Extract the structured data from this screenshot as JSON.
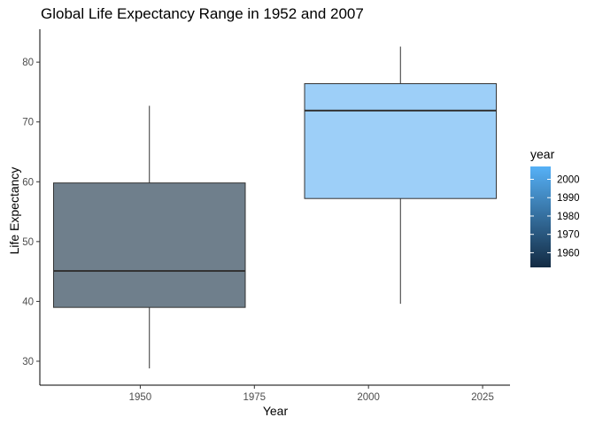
{
  "chart_data": {
    "type": "boxplot",
    "title": "Global Life Expectancy Range in 1952 and 2007",
    "xlabel": "Year",
    "ylabel": "Life Expectancy",
    "xlim": [
      1928,
      2031
    ],
    "ylim": [
      26,
      85.5
    ],
    "x_ticks": [
      1950,
      1975,
      2000,
      2025
    ],
    "y_ticks": [
      30,
      40,
      50,
      60,
      70,
      80
    ],
    "grid": false,
    "legend": {
      "title": "year",
      "type": "colorbar",
      "position": "right",
      "range": [
        1952,
        2007
      ],
      "ticks": [
        1960,
        1970,
        1980,
        1990,
        2000
      ],
      "color_low": "#132B43",
      "color_high": "#56B1F7"
    },
    "boxes": [
      {
        "year": 1952,
        "x_left": 1931,
        "x_right": 1973,
        "whisker_low": 28.8,
        "q1": 39.0,
        "median": 45.1,
        "q3": 59.8,
        "whisker_high": 72.7,
        "fill": "#6f7f8c"
      },
      {
        "year": 2007,
        "x_left": 1986,
        "x_right": 2028,
        "whisker_low": 39.6,
        "q1": 57.2,
        "median": 71.9,
        "q3": 76.4,
        "whisker_high": 82.6,
        "fill": "#9dcff8"
      }
    ]
  }
}
